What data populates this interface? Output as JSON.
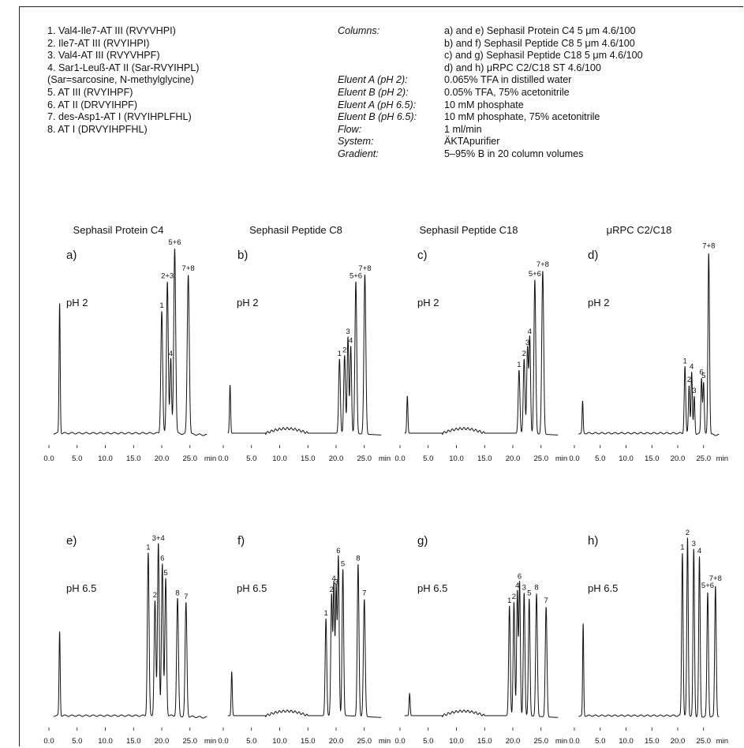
{
  "legend": [
    "1.  Val4-Ile7-AT III (RVYVHPI)",
    "2.  Ile7-AT III (RVYIHPI)",
    "3.  Val4-AT III (RVYVHPF)",
    "4.  Sar1-Leuß-AT II (Sar-RVYIHPL)",
    "      (Sar=sarcosine, N-methylglycine)",
    "5.  AT III (RVYIHPF)",
    "6.  AT II (DRVYIHPF)",
    "7.  des-Asp1-AT I (RVYIHPLFHL)",
    "8.  AT I (DRVYIHPFHL)"
  ],
  "conditions": {
    "keys": [
      "Columns:",
      "",
      "",
      "",
      "Eluent A (pH 2):",
      "Eluent B (pH 2):",
      "Eluent A (pH 6.5):",
      "Eluent B (pH 6.5):",
      "Flow:",
      "System:",
      "Gradient:"
    ],
    "values": [
      "a) and e) Sephasil Protein C4 5 μm 4.6/100",
      "b) and f) Sephasil Peptide C8 5 μm 4.6/100",
      "c) and g) Sephasil Peptide C18 5 μm 4.6/100",
      "d) and h) μRPC C2/C18 ST 4.6/100",
      "0.065% TFA in distilled water",
      "0.05% TFA, 75% acetonitrile",
      "10 mM phosphate",
      "10 mM phosphate, 75% acetonitrile",
      "1 ml/min",
      "ÄKTApurifier",
      "5–95% B in 20 column volumes"
    ]
  },
  "colors": {
    "trace": "#111111",
    "text": "#111111",
    "background": "#ffffff"
  },
  "chart_data": [
    {
      "type": "line",
      "panel": "a)",
      "title": "Sephasil Protein C4",
      "condition": "pH 2",
      "xlabel": "min",
      "xlim": [
        0,
        28
      ],
      "ylim": [
        0,
        1
      ],
      "xticks": [
        "0.0",
        "5.0",
        "10.0",
        "15.0",
        "20.0",
        "25.0"
      ],
      "xtick_unit": "min",
      "baseline": "flat",
      "peaks": [
        {
          "x": 1.9,
          "h": 0.7,
          "w": 0.1
        },
        {
          "x": 20.0,
          "h": 0.66,
          "w": 0.16,
          "label": "1"
        },
        {
          "x": 21.0,
          "h": 0.82,
          "w": 0.16,
          "label": "2+3"
        },
        {
          "x": 21.6,
          "h": 0.4,
          "w": 0.14,
          "label": "4"
        },
        {
          "x": 22.3,
          "h": 1.0,
          "w": 0.17,
          "label": "5+6"
        },
        {
          "x": 24.7,
          "h": 0.86,
          "w": 0.18,
          "label": "7+8"
        }
      ]
    },
    {
      "type": "line",
      "panel": "b)",
      "title": "Sephasil Peptide C8",
      "condition": "pH 2",
      "xlabel": "min",
      "xlim": [
        0,
        28
      ],
      "ylim": [
        0,
        1
      ],
      "xticks": [
        "0.0",
        "5.0",
        "10.0",
        "15.0",
        "20.0",
        "25.0"
      ],
      "xtick_unit": "min",
      "baseline": "hump",
      "peaks": [
        {
          "x": 1.2,
          "h": 0.26,
          "w": 0.1
        },
        {
          "x": 20.6,
          "h": 0.4,
          "w": 0.15,
          "label": "1"
        },
        {
          "x": 21.5,
          "h": 0.42,
          "w": 0.15,
          "label": "2"
        },
        {
          "x": 22.1,
          "h": 0.52,
          "w": 0.14,
          "label": "3"
        },
        {
          "x": 22.6,
          "h": 0.47,
          "w": 0.14,
          "label": "4"
        },
        {
          "x": 23.5,
          "h": 0.82,
          "w": 0.16,
          "label": "5+6"
        },
        {
          "x": 25.1,
          "h": 0.86,
          "w": 0.17,
          "label": "7+8"
        }
      ]
    },
    {
      "type": "line",
      "panel": "c)",
      "title": "Sephasil Peptide C18",
      "condition": "pH 2",
      "xlabel": "min",
      "xlim": [
        0,
        28
      ],
      "ylim": [
        0,
        1
      ],
      "xticks": [
        "0.0",
        "5.0",
        "10.0",
        "15.0",
        "20.0",
        "25.0"
      ],
      "xtick_unit": "min",
      "baseline": "hump",
      "peaks": [
        {
          "x": 1.3,
          "h": 0.2,
          "w": 0.1
        },
        {
          "x": 21.1,
          "h": 0.34,
          "w": 0.15,
          "label": "1"
        },
        {
          "x": 22.0,
          "h": 0.4,
          "w": 0.15,
          "label": "2"
        },
        {
          "x": 22.6,
          "h": 0.46,
          "w": 0.14,
          "label": "3"
        },
        {
          "x": 23.0,
          "h": 0.52,
          "w": 0.14,
          "label": "4"
        },
        {
          "x": 23.9,
          "h": 0.83,
          "w": 0.16,
          "label": "5+6"
        },
        {
          "x": 25.3,
          "h": 0.88,
          "w": 0.17,
          "label": "7+8"
        }
      ]
    },
    {
      "type": "line",
      "panel": "d)",
      "title": "μRPC C2/C18",
      "condition": "pH 2",
      "xlabel": "min",
      "xlim": [
        0,
        28
      ],
      "ylim": [
        0,
        1
      ],
      "xticks": [
        "0.0",
        "5.0",
        "10.0",
        "15.0",
        "20.0",
        "25.0"
      ],
      "xtick_unit": "min",
      "baseline": "flat",
      "peaks": [
        {
          "x": 1.6,
          "h": 0.17,
          "w": 0.1
        },
        {
          "x": 21.4,
          "h": 0.36,
          "w": 0.14,
          "label": "1"
        },
        {
          "x": 22.2,
          "h": 0.26,
          "w": 0.13,
          "label": "2"
        },
        {
          "x": 22.7,
          "h": 0.33,
          "w": 0.13,
          "label": "4"
        },
        {
          "x": 23.2,
          "h": 0.2,
          "w": 0.12,
          "label": "3"
        },
        {
          "x": 24.6,
          "h": 0.3,
          "w": 0.13,
          "label": "6"
        },
        {
          "x": 25.0,
          "h": 0.28,
          "w": 0.13,
          "label": "5"
        },
        {
          "x": 26.0,
          "h": 0.98,
          "w": 0.15,
          "label": "7+8"
        }
      ]
    },
    {
      "type": "line",
      "panel": "e)",
      "condition": "pH 6.5",
      "xlabel": "min",
      "xlim": [
        0,
        28
      ],
      "ylim": [
        0,
        1
      ],
      "xticks": [
        "0.0",
        "5.0",
        "10.0",
        "15.0",
        "20.0",
        "25.0"
      ],
      "xtick_unit": "min",
      "baseline": "flat",
      "peaks": [
        {
          "x": 1.9,
          "h": 0.46,
          "w": 0.1
        },
        {
          "x": 17.6,
          "h": 0.89,
          "w": 0.15,
          "label": "1"
        },
        {
          "x": 18.8,
          "h": 0.63,
          "w": 0.15,
          "label": "2"
        },
        {
          "x": 19.4,
          "h": 0.94,
          "w": 0.15,
          "label": "3+4"
        },
        {
          "x": 20.1,
          "h": 0.83,
          "w": 0.15,
          "label": "6"
        },
        {
          "x": 20.7,
          "h": 0.75,
          "w": 0.15,
          "label": "5"
        },
        {
          "x": 22.8,
          "h": 0.64,
          "w": 0.16,
          "label": "8"
        },
        {
          "x": 24.3,
          "h": 0.62,
          "w": 0.16,
          "label": "7"
        }
      ]
    },
    {
      "type": "line",
      "panel": "f)",
      "condition": "pH 6.5",
      "xlabel": "min",
      "xlim": [
        0,
        28
      ],
      "ylim": [
        0,
        1
      ],
      "xticks": [
        "0.0",
        "5.0",
        "10.0",
        "15.0",
        "20.0",
        "25.0"
      ],
      "xtick_unit": "min",
      "baseline": "hump",
      "peaks": [
        {
          "x": 1.5,
          "h": 0.24,
          "w": 0.1
        },
        {
          "x": 18.2,
          "h": 0.53,
          "w": 0.14,
          "label": "1"
        },
        {
          "x": 19.2,
          "h": 0.66,
          "w": 0.14,
          "label": "2"
        },
        {
          "x": 19.6,
          "h": 0.72,
          "w": 0.13,
          "label": "4"
        },
        {
          "x": 20.0,
          "h": 0.7,
          "w": 0.13,
          "label": "3"
        },
        {
          "x": 20.4,
          "h": 0.87,
          "w": 0.14,
          "label": "6"
        },
        {
          "x": 21.2,
          "h": 0.8,
          "w": 0.14,
          "label": "5"
        },
        {
          "x": 23.9,
          "h": 0.83,
          "w": 0.15,
          "label": "8"
        },
        {
          "x": 25.0,
          "h": 0.64,
          "w": 0.16,
          "label": "7"
        }
      ]
    },
    {
      "type": "line",
      "panel": "g)",
      "condition": "pH 6.5",
      "xlabel": "min",
      "xlim": [
        0,
        28
      ],
      "ylim": [
        0,
        1
      ],
      "xticks": [
        "0.0",
        "5.0",
        "10.0",
        "15.0",
        "20.0",
        "25.0"
      ],
      "xtick_unit": "min",
      "baseline": "hump",
      "peaks": [
        {
          "x": 1.7,
          "h": 0.12,
          "w": 0.1
        },
        {
          "x": 19.4,
          "h": 0.6,
          "w": 0.14,
          "label": "1"
        },
        {
          "x": 20.2,
          "h": 0.62,
          "w": 0.14,
          "label": "2"
        },
        {
          "x": 20.8,
          "h": 0.68,
          "w": 0.13,
          "label": "4"
        },
        {
          "x": 21.2,
          "h": 0.73,
          "w": 0.13,
          "label": "6"
        },
        {
          "x": 22.0,
          "h": 0.67,
          "w": 0.14,
          "label": "3"
        },
        {
          "x": 22.9,
          "h": 0.64,
          "w": 0.14,
          "label": "5"
        },
        {
          "x": 24.2,
          "h": 0.67,
          "w": 0.15,
          "label": "8"
        },
        {
          "x": 25.9,
          "h": 0.6,
          "w": 0.15,
          "label": "7"
        }
      ]
    },
    {
      "type": "line",
      "panel": "h)",
      "condition": "pH 6.5",
      "xlabel": "min",
      "xlim": [
        0,
        28
      ],
      "ylim": [
        0,
        1
      ],
      "xticks": [
        "0.0",
        "5.0",
        "10.0",
        "15.0",
        "20.0",
        "25.0"
      ],
      "xtick_unit": "min",
      "baseline": "flat",
      "peaks": [
        {
          "x": 1.7,
          "h": 0.5,
          "w": 0.1
        },
        {
          "x": 20.9,
          "h": 0.89,
          "w": 0.14,
          "label": "1"
        },
        {
          "x": 21.9,
          "h": 0.97,
          "w": 0.14,
          "label": "2"
        },
        {
          "x": 23.1,
          "h": 0.91,
          "w": 0.14,
          "label": "3"
        },
        {
          "x": 24.2,
          "h": 0.87,
          "w": 0.14,
          "label": "4"
        },
        {
          "x": 25.8,
          "h": 0.68,
          "w": 0.15,
          "label": "5+6"
        },
        {
          "x": 27.3,
          "h": 0.72,
          "w": 0.15,
          "label": "7+8"
        }
      ]
    }
  ]
}
